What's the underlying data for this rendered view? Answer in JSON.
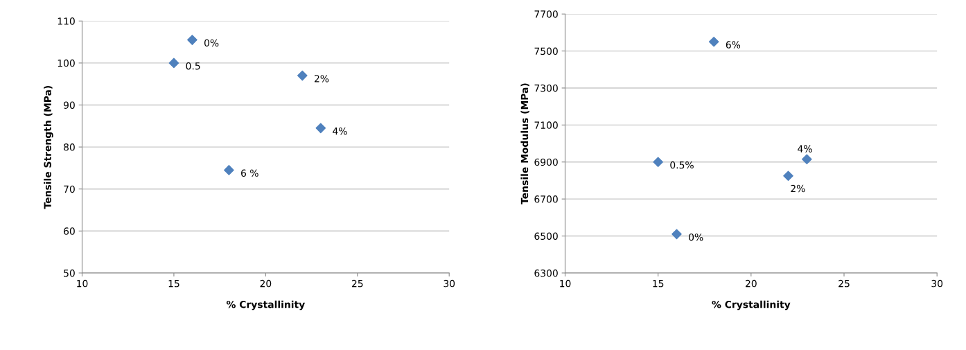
{
  "chart_data": [
    {
      "type": "scatter",
      "xlabel": "% Crystallinity",
      "ylabel": "Tensile Strength (MPa)",
      "x": [
        16,
        15,
        22,
        23,
        18
      ],
      "series": [
        {
          "color": "#4f81bd",
          "values": [
            105.5,
            100,
            97,
            84.5,
            74.5
          ]
        }
      ],
      "marker": "diamond",
      "xlim": [
        10,
        30
      ],
      "xticks": [
        10,
        15,
        20,
        25,
        30
      ],
      "ylim": [
        50,
        110
      ],
      "yticks": [
        50,
        60,
        70,
        80,
        90,
        100,
        110
      ],
      "grid": "y",
      "annotations": [
        {
          "text": "0%",
          "x": 16,
          "y": 105.5
        },
        {
          "text": "0.5",
          "x": 15,
          "y": 100
        },
        {
          "text": "2%",
          "x": 22,
          "y": 97
        },
        {
          "text": "4%",
          "x": 23,
          "y": 84.5
        },
        {
          "text": "6 %",
          "x": 18,
          "y": 74.5
        }
      ]
    },
    {
      "type": "scatter",
      "xlabel": "% Crystallinity",
      "ylabel": "Tensile Modulus (MPa)",
      "x": [
        18,
        15,
        23,
        22,
        16
      ],
      "series": [
        {
          "color": "#4f81bd",
          "values": [
            7550,
            6900,
            6915,
            6825,
            6510
          ]
        }
      ],
      "marker": "diamond",
      "xlim": [
        10,
        30
      ],
      "xticks": [
        10,
        15,
        20,
        25,
        30
      ],
      "ylim": [
        6300,
        7700
      ],
      "yticks": [
        6300,
        6500,
        6700,
        6900,
        7100,
        7300,
        7500,
        7700
      ],
      "grid": "y",
      "annotations": [
        {
          "text": "6%",
          "x": 18,
          "y": 7550
        },
        {
          "text": "0.5%",
          "x": 15,
          "y": 6900
        },
        {
          "text": "4%",
          "x": 23,
          "y": 6915
        },
        {
          "text": "2%",
          "x": 22,
          "y": 6825
        },
        {
          "text": "0%",
          "x": 16,
          "y": 6510
        }
      ]
    }
  ]
}
